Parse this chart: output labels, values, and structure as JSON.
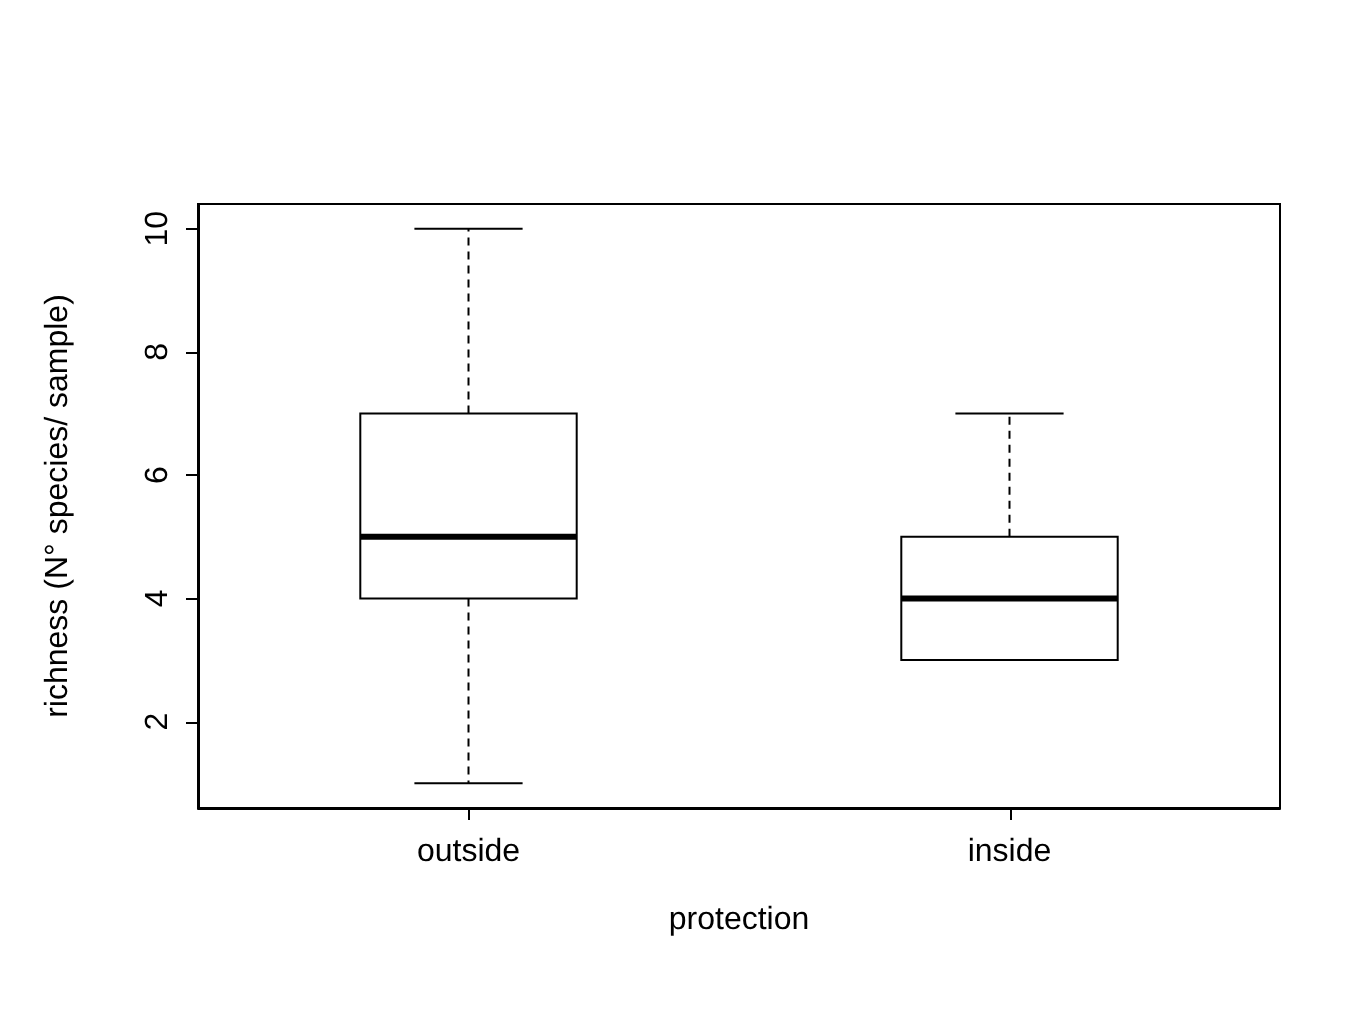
{
  "chart_data": {
    "type": "box",
    "xlabel": "protection",
    "ylabel": "richness (N° species/ sample)",
    "categories": [
      "outside",
      "inside"
    ],
    "boxes": [
      {
        "low": 1,
        "q1": 4,
        "median": 5,
        "q3": 7,
        "high": 10
      },
      {
        "low": 3,
        "q1": 3,
        "median": 4,
        "q3": 5,
        "high": 7
      }
    ],
    "ylim": [
      0.6,
      10.4
    ],
    "yticks": [
      2,
      4,
      6,
      8,
      10
    ],
    "grid": false
  }
}
